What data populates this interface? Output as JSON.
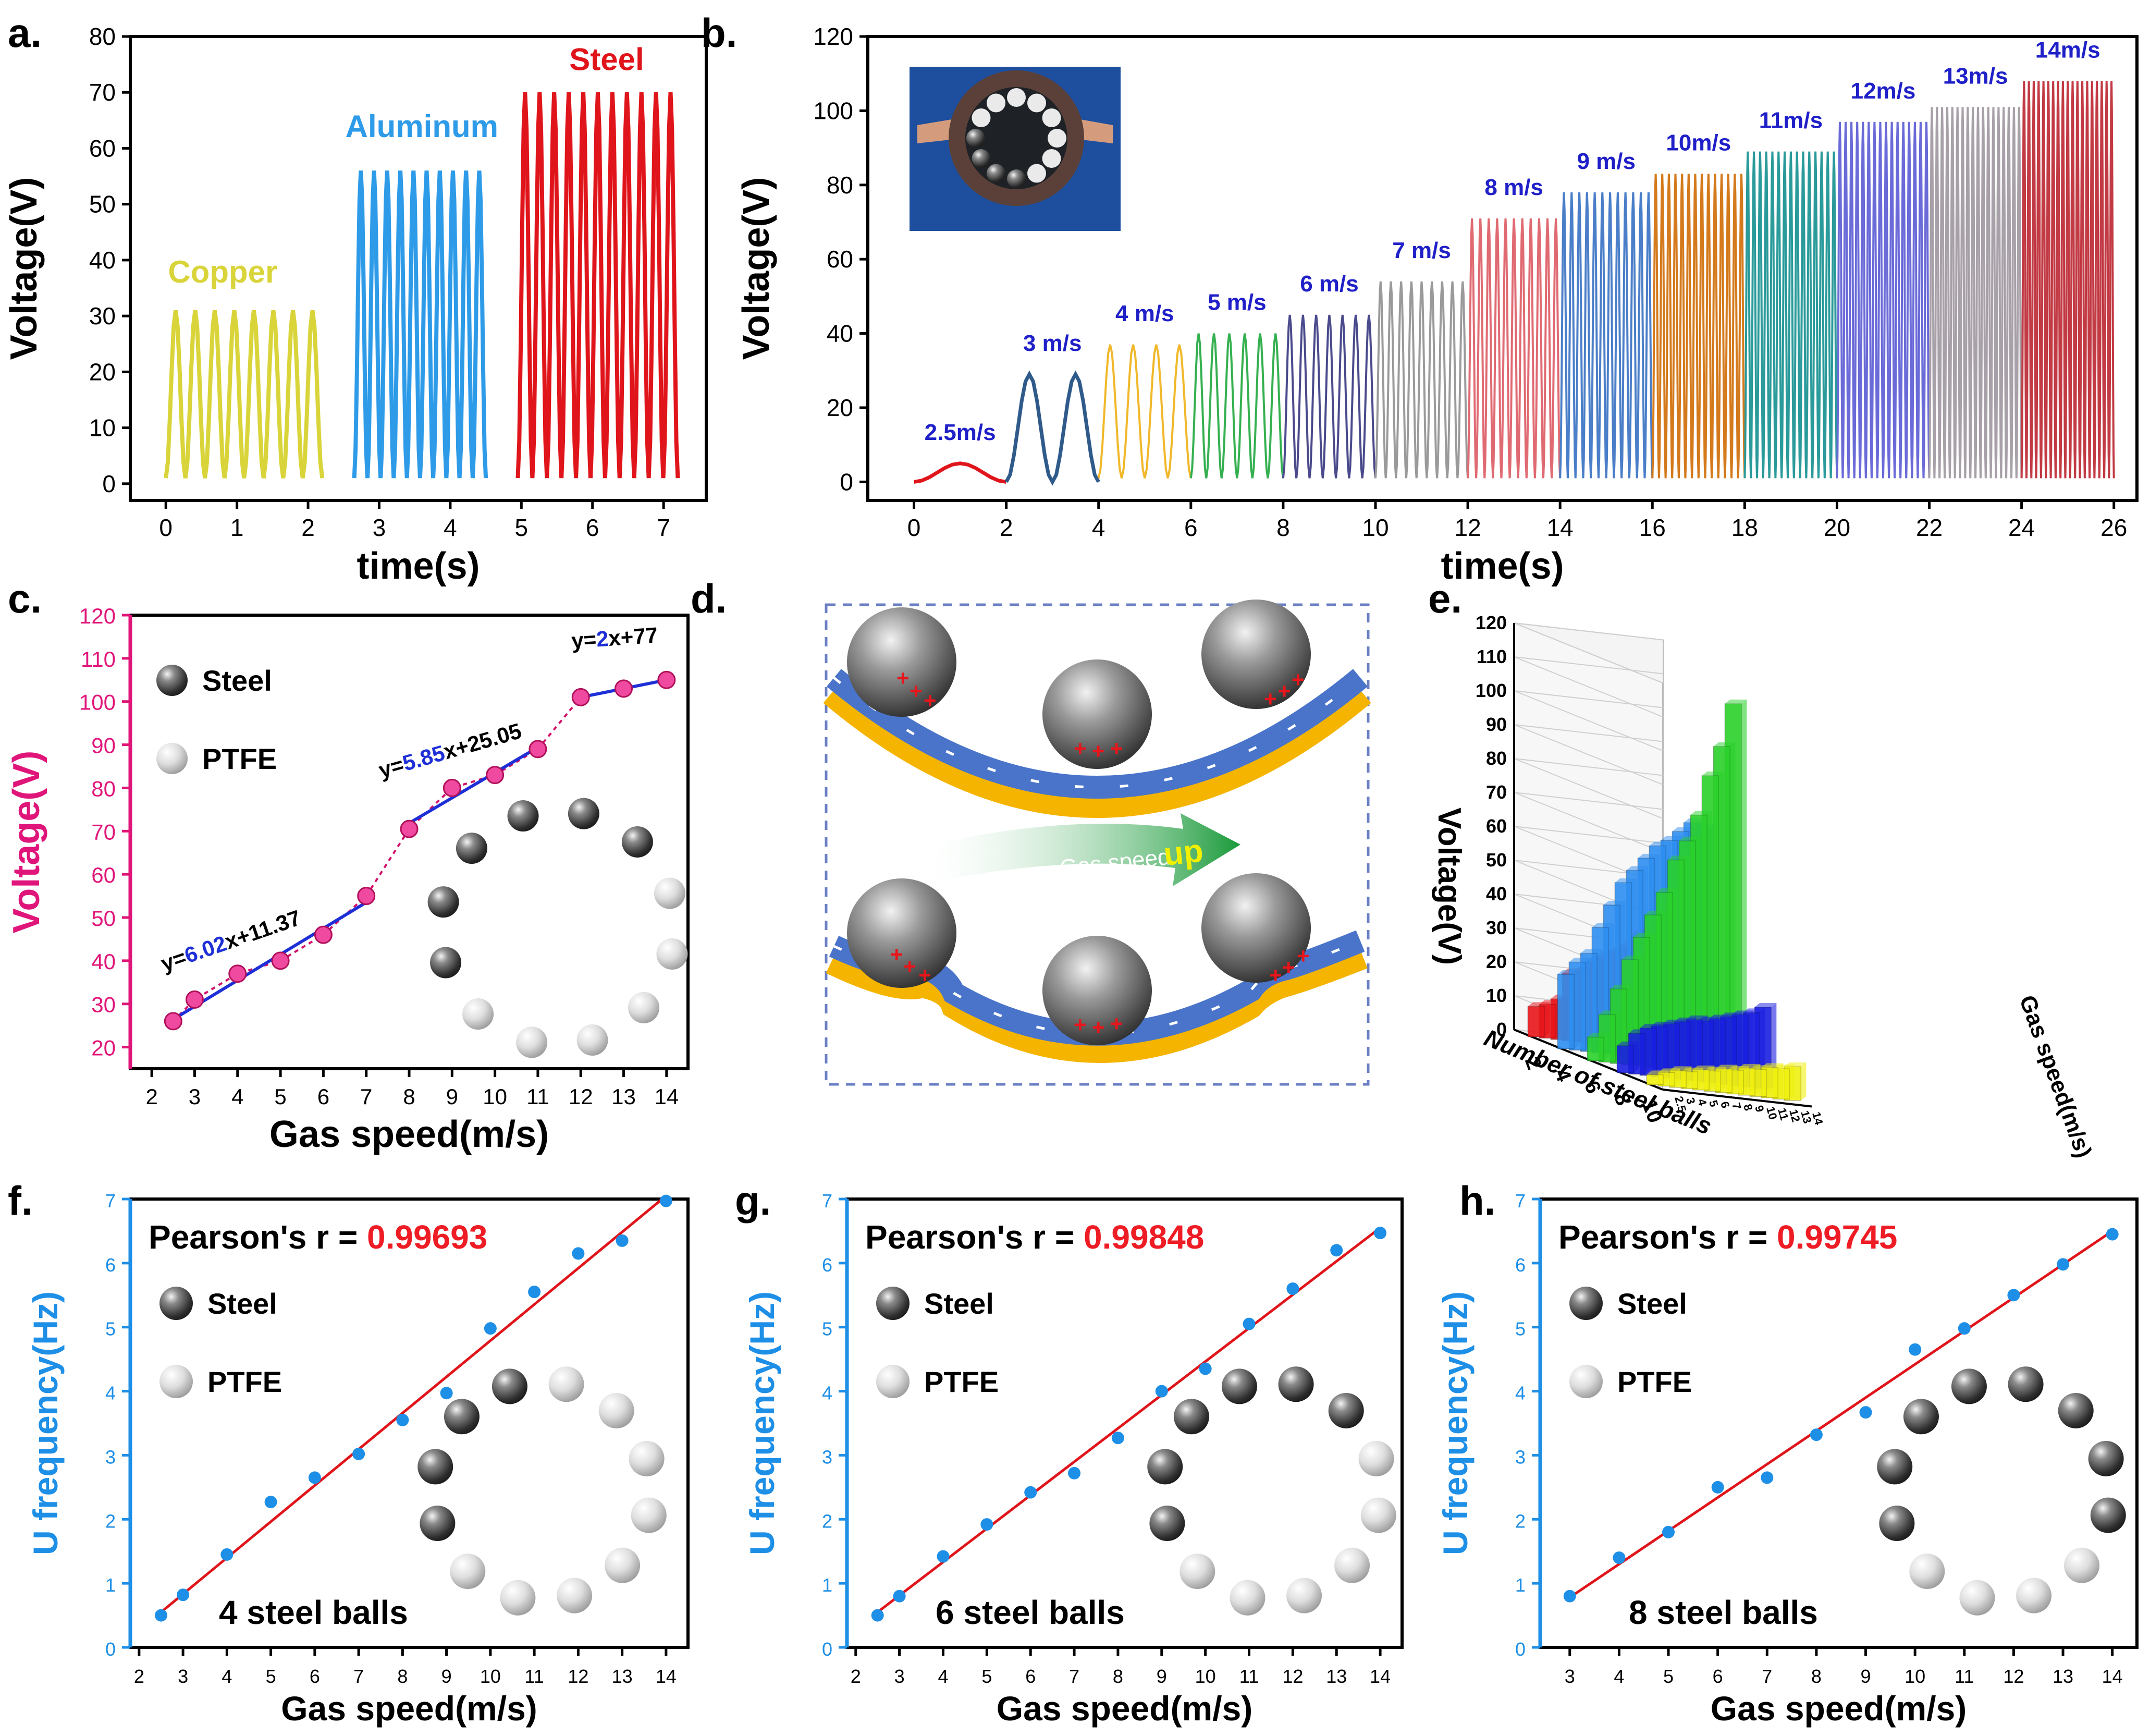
{
  "colors": {
    "copper": "#d9d43a",
    "aluminum": "#2e9be8",
    "steel": "#e0151b",
    "pink": "#e0157a",
    "blue_label": "#2020c8",
    "fit_blue": "#1f2fd6",
    "freq_blue": "#1e8fe6",
    "red_value": "#ee1c24",
    "tribo_blue": "#4a74c9",
    "tribo_yellow": "#f5b400"
  },
  "panel_labels": {
    "a": "a.",
    "b": "b.",
    "c": "c.",
    "d": "d.",
    "e": "e.",
    "f": "f.",
    "g": "g.",
    "h": "h."
  },
  "legend": {
    "steel": "Steel",
    "ptfe": "PTFE"
  },
  "panel_d": {
    "arrow_text": "Gas speed",
    "arrow_word": "up",
    "charge_plus": "+",
    "charge_minus": "−"
  },
  "chart_data": [
    {
      "id": "a",
      "type": "line",
      "xlabel": "time(s)",
      "ylabel": "Voltage(V)",
      "xlim": [
        -0.5,
        7.6
      ],
      "ylim": [
        -3,
        80
      ],
      "xticks": [
        0,
        1,
        2,
        3,
        4,
        5,
        6,
        7
      ],
      "yticks": [
        0,
        10,
        20,
        30,
        40,
        50,
        60,
        70,
        80
      ],
      "series": [
        {
          "name": "Copper",
          "color": "#d9d43a",
          "x_start": 0.0,
          "x_end": 2.2,
          "cycles": 8,
          "min": 1,
          "max": 31
        },
        {
          "name": "Aluminum",
          "color": "#2e9be8",
          "x_start": 2.65,
          "x_end": 4.5,
          "cycles": 10,
          "min": 1,
          "max": 56
        },
        {
          "name": "Steel",
          "color": "#e0151b",
          "x_start": 4.95,
          "x_end": 7.2,
          "cycles": 11,
          "min": 1,
          "max": 70
        }
      ]
    },
    {
      "id": "b",
      "type": "line",
      "xlabel": "time(s)",
      "ylabel": "Voltage(V)",
      "xlim": [
        -1,
        26.5
      ],
      "ylim": [
        -5,
        120
      ],
      "xticks": [
        0,
        2,
        4,
        6,
        8,
        10,
        12,
        14,
        16,
        18,
        20,
        22,
        24,
        26
      ],
      "yticks": [
        0,
        20,
        40,
        60,
        80,
        100,
        120
      ],
      "series": [
        {
          "name": "2.5m/s",
          "color": "#e0151b",
          "x_start": 0,
          "x_end": 2,
          "cycles": 1,
          "min": 0,
          "max": 5
        },
        {
          "name": "3 m/s",
          "color": "#2f5a8a",
          "x_start": 2,
          "x_end": 4,
          "cycles": 2,
          "min": 0,
          "max": 29
        },
        {
          "name": "4 m/s",
          "color": "#f0b82a",
          "x_start": 4,
          "x_end": 6,
          "cycles": 4,
          "min": 1,
          "max": 37
        },
        {
          "name": "5 m/s",
          "color": "#35b050",
          "x_start": 6,
          "x_end": 8,
          "cycles": 6,
          "min": 1,
          "max": 40
        },
        {
          "name": "6 m/s",
          "color": "#4a4a8c",
          "x_start": 8,
          "x_end": 10,
          "cycles": 7,
          "min": 1,
          "max": 45
        },
        {
          "name": "7 m/s",
          "color": "#9a9a9a",
          "x_start": 10,
          "x_end": 12,
          "cycles": 9,
          "min": 1,
          "max": 54
        },
        {
          "name": "8 m/s",
          "color": "#e06a72",
          "x_start": 12,
          "x_end": 14,
          "cycles": 11,
          "min": 1,
          "max": 71
        },
        {
          "name": "9 m/s",
          "color": "#4a7ec8",
          "x_start": 14,
          "x_end": 16,
          "cycles": 12,
          "min": 1,
          "max": 78
        },
        {
          "name": "10m/s",
          "color": "#d47a1c",
          "x_start": 16,
          "x_end": 18,
          "cycles": 14,
          "min": 1,
          "max": 83
        },
        {
          "name": "11m/s",
          "color": "#2a9a9a",
          "x_start": 18,
          "x_end": 20,
          "cycles": 15,
          "min": 1,
          "max": 89
        },
        {
          "name": "12m/s",
          "color": "#6a6ad8",
          "x_start": 20,
          "x_end": 22,
          "cycles": 16,
          "min": 1,
          "max": 97
        },
        {
          "name": "13m/s",
          "color": "#a8a0a8",
          "x_start": 22,
          "x_end": 24,
          "cycles": 18,
          "min": 1,
          "max": 101
        },
        {
          "name": "14m/s",
          "color": "#c23a44",
          "x_start": 24,
          "x_end": 26,
          "cycles": 19,
          "min": 1,
          "max": 108
        }
      ],
      "inset": "photo of device with balls"
    },
    {
      "id": "c",
      "type": "scatter",
      "xlabel": "Gas speed(m/s)",
      "ylabel": "Voltage(V)",
      "xlim": [
        1.5,
        14.5
      ],
      "ylim": [
        15,
        120
      ],
      "xticks": [
        2,
        3,
        4,
        5,
        6,
        7,
        8,
        9,
        10,
        11,
        12,
        13,
        14
      ],
      "yticks": [
        20,
        30,
        40,
        50,
        60,
        70,
        80,
        90,
        100,
        110,
        120
      ],
      "x": [
        2.5,
        3,
        4,
        5,
        6,
        7,
        8,
        9,
        10,
        11,
        12,
        13,
        14
      ],
      "y": [
        26,
        31,
        37,
        40,
        46,
        55,
        70.5,
        80,
        83,
        89,
        101,
        103,
        105
      ],
      "fits": [
        {
          "x_range": [
            2.5,
            7
          ],
          "slope": 6.02,
          "intercept": 11.37,
          "prefix": "y=",
          "coef": "6.02",
          "suffix": "x+11.37"
        },
        {
          "x_range": [
            8,
            11
          ],
          "slope": 5.85,
          "intercept": 25.05,
          "prefix": "y=",
          "coef": "5.85",
          "suffix": "x+25.05"
        },
        {
          "x_range": [
            12,
            14
          ],
          "slope": 2,
          "intercept": 77,
          "prefix": "y=",
          "coef": "2",
          "suffix": "x+77"
        }
      ]
    },
    {
      "id": "e",
      "type": "bar3d",
      "xlabel": "Number of steel balls",
      "ylabel": "Gas speed(m/s)",
      "zlabel": "Voltage(V)",
      "zlim": [
        0,
        120
      ],
      "zticks": [
        0,
        10,
        20,
        30,
        40,
        50,
        60,
        70,
        80,
        90,
        100,
        110,
        120
      ],
      "ball_ticks": [
        "2",
        "4",
        "6",
        "8",
        "10"
      ],
      "speed_ticks": [
        "2.5",
        "3",
        "4",
        "5",
        "6",
        "7",
        "8",
        "9",
        "10",
        "11",
        "12",
        "13",
        "14"
      ],
      "series": [
        {
          "balls": "2",
          "color": "#e8151b",
          "values": [
            9,
            10,
            12,
            20,
            21,
            24,
            26,
            28,
            30,
            34,
            36,
            39,
            42
          ]
        },
        {
          "balls": "4",
          "color": "#2e8ef0",
          "values": [
            22,
            26,
            29,
            37,
            44,
            51,
            55,
            59,
            63,
            65,
            68,
            71,
            70
          ]
        },
        {
          "balls": "6",
          "color": "#2ad02a",
          "values": [
            7,
            14,
            22,
            31,
            38,
            45,
            52,
            62,
            68,
            76,
            88,
            97,
            110
          ]
        },
        {
          "balls": "8",
          "color": "#1a1ee0",
          "values": [
            8,
            12,
            14,
            15,
            16,
            17,
            18,
            18,
            19,
            20,
            21,
            22,
            24
          ]
        },
        {
          "balls": "10",
          "color": "#f0f010",
          "values": [
            3,
            4,
            5,
            5,
            6,
            6,
            7,
            7,
            8,
            8,
            9,
            9,
            10
          ]
        }
      ]
    },
    {
      "id": "f",
      "type": "scatter",
      "xlabel": "Gas speed(m/s)",
      "ylabel": "U  frequency(Hz)",
      "xlim": [
        1.8,
        14.5
      ],
      "ylim": [
        0,
        7
      ],
      "xticks": [
        2,
        3,
        4,
        5,
        6,
        7,
        8,
        9,
        10,
        11,
        12,
        13,
        14
      ],
      "yticks": [
        0,
        1,
        2,
        3,
        4,
        5,
        6,
        7
      ],
      "pearson_label": "Pearson's r = ",
      "pearson_value": "0.99693",
      "balls_label": "4 steel balls",
      "steel_count": 4,
      "x": [
        2.5,
        3,
        4,
        5,
        6,
        7,
        8,
        9,
        10,
        11,
        12,
        13,
        14
      ],
      "y": [
        0.5,
        0.82,
        1.45,
        2.27,
        2.65,
        3.02,
        3.55,
        3.97,
        4.98,
        5.55,
        6.15,
        6.35,
        6.97
      ],
      "fit_line": [
        [
          2.5,
          0.55
        ],
        [
          14,
          7.05
        ]
      ]
    },
    {
      "id": "g",
      "type": "scatter",
      "xlabel": "Gas speed(m/s)",
      "ylabel": "U  frequency(Hz)",
      "xlim": [
        1.8,
        14.5
      ],
      "ylim": [
        0,
        7
      ],
      "xticks": [
        2,
        3,
        4,
        5,
        6,
        7,
        8,
        9,
        10,
        11,
        12,
        13,
        14
      ],
      "yticks": [
        0,
        1,
        2,
        3,
        4,
        5,
        6,
        7
      ],
      "pearson_label": "Pearson's r = ",
      "pearson_value": "0.99848",
      "balls_label": "6 steel balls",
      "steel_count": 6,
      "x": [
        2.5,
        3,
        4,
        5,
        6,
        7,
        8,
        9,
        10,
        11,
        12,
        13,
        14
      ],
      "y": [
        0.5,
        0.8,
        1.42,
        1.92,
        2.42,
        2.72,
        3.27,
        4.0,
        4.35,
        5.05,
        5.6,
        6.2,
        6.47
      ],
      "fit_line": [
        [
          2.5,
          0.55
        ],
        [
          14,
          6.55
        ]
      ]
    },
    {
      "id": "h",
      "type": "scatter",
      "xlabel": "Gas speed(m/s)",
      "ylabel": "U  frequency(Hz)",
      "xlim": [
        2.4,
        14.5
      ],
      "ylim": [
        0,
        7
      ],
      "xticks": [
        3,
        4,
        5,
        6,
        7,
        8,
        9,
        10,
        11,
        12,
        13,
        14
      ],
      "yticks": [
        0,
        1,
        2,
        3,
        4,
        5,
        6,
        7
      ],
      "pearson_label": "Pearson's r = ",
      "pearson_value": "0.99745",
      "balls_label": "8 steel balls",
      "steel_count": 8,
      "x": [
        3,
        4,
        5,
        6,
        7,
        8,
        9,
        10,
        11,
        12,
        13,
        14
      ],
      "y": [
        0.8,
        1.4,
        1.8,
        2.5,
        2.65,
        3.32,
        3.67,
        4.65,
        4.98,
        5.5,
        5.98,
        6.45
      ],
      "fit_line": [
        [
          3,
          0.78
        ],
        [
          14,
          6.5
        ]
      ]
    }
  ]
}
